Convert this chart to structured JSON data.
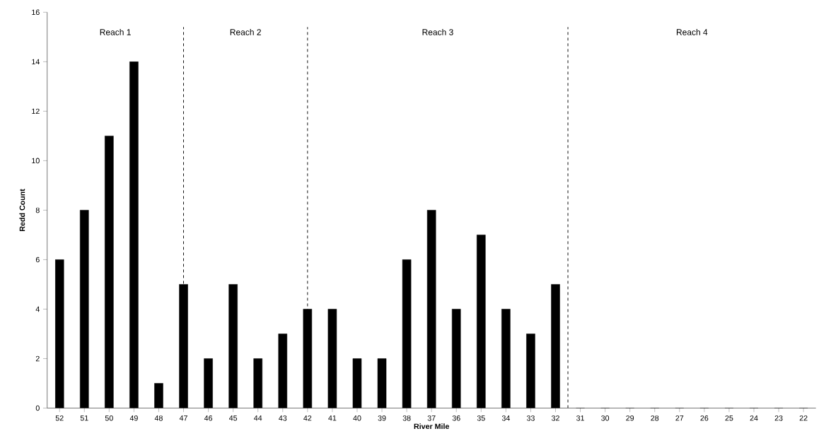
{
  "chart_data": {
    "type": "bar",
    "xlabel": "River Mile",
    "ylabel": "Redd Count",
    "x": [
      52,
      51,
      50,
      49,
      48,
      47,
      46,
      45,
      44,
      43,
      42,
      41,
      40,
      39,
      38,
      37,
      36,
      35,
      34,
      33,
      32,
      31,
      30,
      29,
      28,
      27,
      26,
      25,
      24,
      23,
      22
    ],
    "values": [
      6,
      8,
      11,
      14,
      1,
      5,
      2,
      5,
      2,
      3,
      4,
      4,
      2,
      2,
      6,
      8,
      4,
      7,
      4,
      3,
      5,
      0,
      0,
      0,
      0,
      0,
      0,
      0,
      0,
      0,
      0
    ],
    "color": "#000000",
    "xlim": [
      52.5,
      21.5
    ],
    "xticks": [
      52,
      51,
      50,
      49,
      48,
      47,
      46,
      45,
      44,
      43,
      42,
      41,
      40,
      39,
      38,
      37,
      36,
      35,
      34,
      33,
      32,
      31,
      30,
      29,
      28,
      27,
      26,
      25,
      24,
      23,
      22
    ],
    "ylim": [
      0,
      16
    ],
    "yticks": [
      0,
      2,
      4,
      6,
      8,
      10,
      12,
      14,
      16
    ],
    "grid": false,
    "ref_lines": [
      {
        "axis": "x",
        "value": 47,
        "color": "#000000",
        "line_style": "dashed"
      },
      {
        "axis": "x",
        "value": 42,
        "color": "#000000",
        "line_style": "dashed"
      },
      {
        "axis": "x",
        "value": 31.5,
        "color": "#000000",
        "line_style": "dashed"
      }
    ],
    "annotations": [
      "Reach 1",
      "Reach 2",
      "Reach 3",
      "Reach 4"
    ]
  }
}
